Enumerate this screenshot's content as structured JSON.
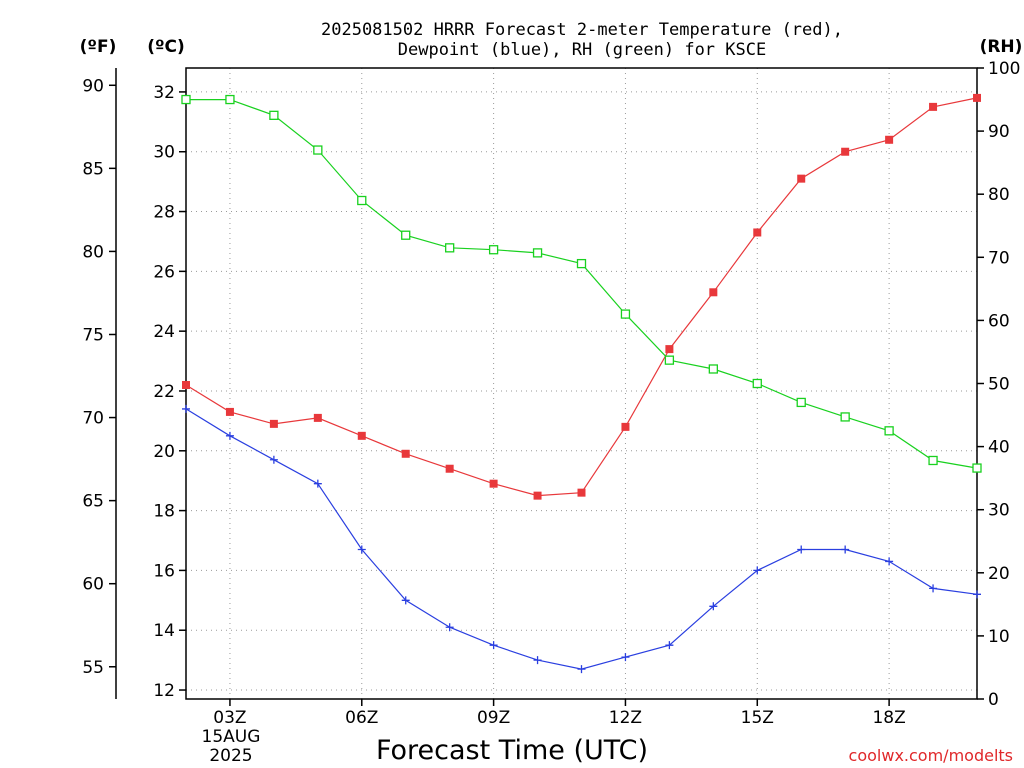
{
  "title_line1": "2025081502 HRRR Forecast 2-meter Temperature (red),",
  "title_line2": "Dewpoint (blue), RH (green) for KSCE",
  "unit_f": "(ºF)",
  "unit_c": "(ºC)",
  "unit_rh": "(RH)",
  "xlabel": "Forecast Time (UTC)",
  "credit": "coolwx.com/modelts",
  "date_line1": "15AUG",
  "date_line2": "2025",
  "colors": {
    "temperature": "#e8383b",
    "dewpoint": "#2a3fe0",
    "rh": "#19d11f"
  },
  "chart_data": {
    "type": "line",
    "x": [
      "02Z",
      "03Z",
      "04Z",
      "05Z",
      "06Z",
      "07Z",
      "08Z",
      "09Z",
      "10Z",
      "11Z",
      "12Z",
      "13Z",
      "14Z",
      "15Z",
      "16Z",
      "17Z",
      "18Z",
      "19Z",
      "20Z"
    ],
    "x_tick_labels": [
      "03Z",
      "06Z",
      "09Z",
      "12Z",
      "15Z",
      "18Z"
    ],
    "y_left_c": {
      "label": "(ºC)",
      "range": [
        11.7,
        32.8
      ],
      "ticks": [
        12,
        14,
        16,
        18,
        20,
        22,
        24,
        26,
        28,
        30,
        32
      ]
    },
    "y_left_f": {
      "label": "(ºF)",
      "range": [
        53.06,
        91.04
      ],
      "ticks": [
        55,
        60,
        65,
        70,
        75,
        80,
        85,
        90
      ]
    },
    "y_right": {
      "label": "(RH)",
      "range": [
        0,
        100
      ],
      "ticks": [
        0,
        10,
        20,
        30,
        40,
        50,
        60,
        70,
        80,
        90,
        100
      ]
    },
    "grid": true,
    "series": [
      {
        "name": "Temperature",
        "unit": "C",
        "marker": "filled-square",
        "values": [
          22.2,
          21.3,
          20.9,
          21.1,
          20.5,
          19.9,
          19.4,
          18.9,
          18.5,
          18.6,
          20.8,
          23.4,
          25.3,
          27.3,
          29.1,
          30.0,
          30.4,
          31.5,
          31.8
        ]
      },
      {
        "name": "Dewpoint",
        "unit": "C",
        "marker": "plus",
        "values": [
          21.4,
          20.5,
          19.7,
          18.9,
          16.7,
          15.0,
          14.1,
          13.5,
          13.0,
          12.7,
          13.1,
          13.5,
          14.8,
          16.0,
          16.7,
          16.7,
          16.3,
          15.4,
          15.2
        ]
      },
      {
        "name": "RH",
        "unit": "%",
        "marker": "open-square",
        "values": [
          95,
          95,
          92.5,
          87,
          79,
          73.5,
          71.5,
          71.2,
          70.7,
          69,
          61,
          53.7,
          52.3,
          50,
          47,
          44.7,
          42.5,
          37.8,
          36.6
        ]
      }
    ]
  }
}
